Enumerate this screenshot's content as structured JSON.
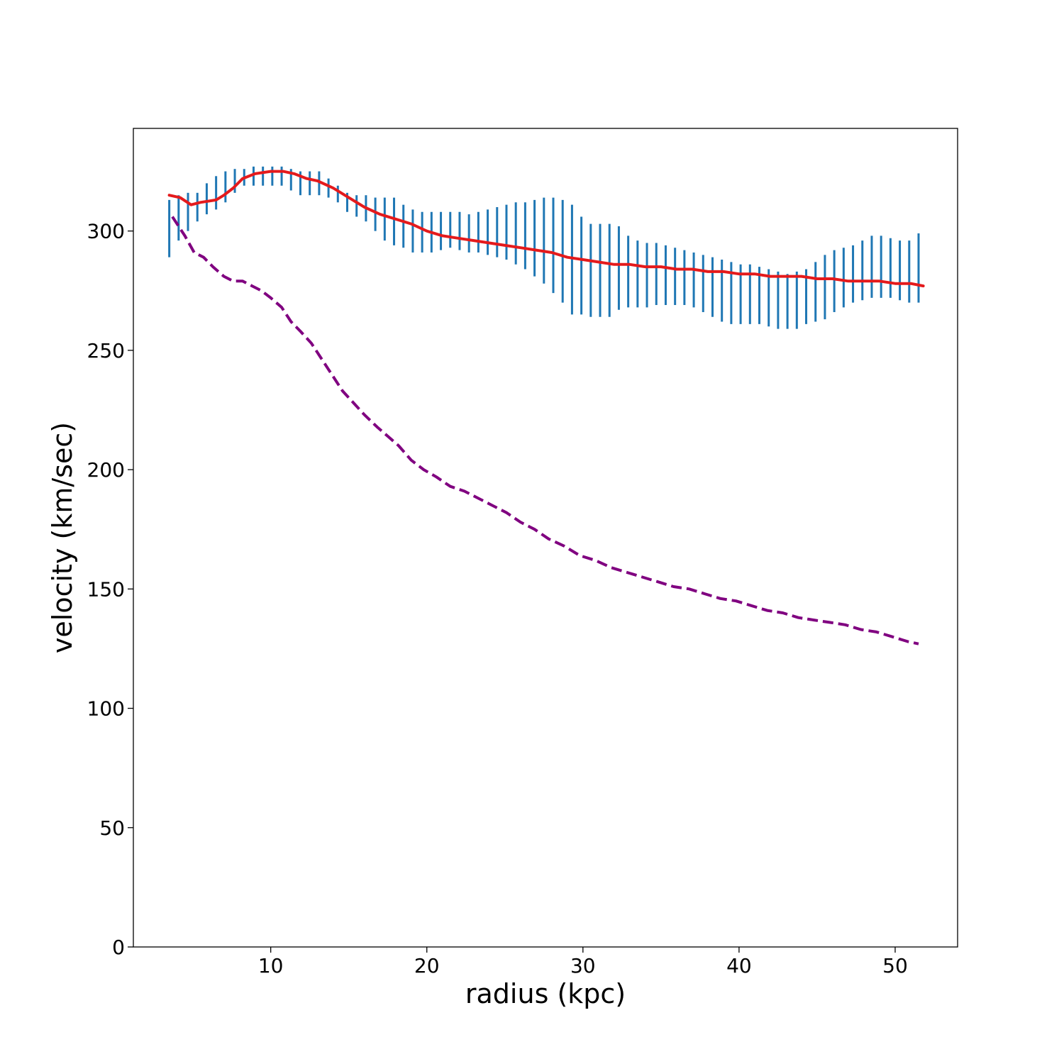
{
  "chart_data": {
    "type": "line",
    "xlabel": "radius (kpc)",
    "ylabel": "velocity (km/sec)",
    "xlim": [
      1.2,
      54.0
    ],
    "ylim": [
      0,
      343
    ],
    "xticks": [
      10,
      20,
      30,
      40,
      50
    ],
    "yticks": [
      0,
      50,
      100,
      150,
      200,
      250,
      300
    ],
    "grid": false,
    "legend": "none",
    "colors": {
      "errorbars": "#1f77b4",
      "fit": "#e41a1c",
      "dashed": "#800080"
    },
    "series": [
      {
        "style": "errorbar",
        "x": [
          3.5,
          4.1,
          4.7,
          5.3,
          5.9,
          6.5,
          7.1,
          7.7,
          8.3,
          8.9,
          9.5,
          10.1,
          10.7,
          11.3,
          11.9,
          12.5,
          13.1,
          13.7,
          14.3,
          14.9,
          15.5,
          16.1,
          16.7,
          17.3,
          17.9,
          18.5,
          19.1,
          19.7,
          20.3,
          20.9,
          21.5,
          22.1,
          22.7,
          23.3,
          23.9,
          24.5,
          25.1,
          25.7,
          26.3,
          26.9,
          27.5,
          28.1,
          28.7,
          29.3,
          29.9,
          30.5,
          31.1,
          31.7,
          32.3,
          32.9,
          33.5,
          34.1,
          34.7,
          35.3,
          35.9,
          36.5,
          37.1,
          37.7,
          38.3,
          38.9,
          39.5,
          40.1,
          40.7,
          41.3,
          41.9,
          42.5,
          43.1,
          43.7,
          44.3,
          44.9,
          45.5,
          46.1,
          46.7,
          47.3,
          47.9,
          48.5,
          49.1,
          49.7,
          50.3,
          50.9,
          51.5
        ],
        "low": [
          289,
          296,
          300,
          304,
          307,
          309,
          312,
          316,
          319,
          319,
          319,
          319,
          319,
          317,
          315,
          315,
          315,
          314,
          312,
          308,
          306,
          304,
          300,
          296,
          294,
          293,
          291,
          291,
          291,
          292,
          293,
          292,
          291,
          291,
          290,
          289,
          288,
          286,
          284,
          281,
          278,
          274,
          270,
          265,
          265,
          264,
          264,
          264,
          267,
          268,
          268,
          268,
          269,
          269,
          269,
          269,
          268,
          266,
          264,
          262,
          261,
          261,
          261,
          261,
          260,
          259,
          259,
          259,
          261,
          262,
          263,
          266,
          268,
          270,
          271,
          272,
          272,
          272,
          271,
          270,
          270
        ],
        "high": [
          313,
          315,
          316,
          316,
          320,
          323,
          325,
          326,
          326,
          327,
          327,
          327,
          327,
          326,
          325,
          325,
          325,
          322,
          319,
          316,
          315,
          315,
          314,
          314,
          314,
          311,
          309,
          308,
          308,
          308,
          308,
          308,
          307,
          308,
          309,
          310,
          311,
          312,
          312,
          313,
          314,
          314,
          313,
          311,
          306,
          303,
          303,
          303,
          302,
          298,
          296,
          295,
          295,
          294,
          293,
          292,
          291,
          290,
          289,
          288,
          287,
          286,
          286,
          285,
          284,
          283,
          282,
          283,
          284,
          287,
          290,
          292,
          293,
          294,
          296,
          298,
          298,
          297,
          296,
          296,
          299
        ]
      },
      {
        "style": "solid",
        "x": [
          3.5,
          4.2,
          4.9,
          5.5,
          6.5,
          7.0,
          7.6,
          8.2,
          9.0,
          10.0,
          10.8,
          11.5,
          12.3,
          13.0,
          14.0,
          15.0,
          16.0,
          17.0,
          18.0,
          19.0,
          20.0,
          21.0,
          22.0,
          23.0,
          24.0,
          25.0,
          26.0,
          27.0,
          28.0,
          29.0,
          30.0,
          31.0,
          32.0,
          33.0,
          34.0,
          35.0,
          36.0,
          37.0,
          38.0,
          39.0,
          40.0,
          41.0,
          42.0,
          43.0,
          44.0,
          45.0,
          46.0,
          47.0,
          48.0,
          49.0,
          50.0,
          51.0,
          51.8
        ],
        "y": [
          315,
          314,
          311,
          312,
          313,
          315,
          318,
          322,
          324,
          325,
          325,
          324,
          322,
          321,
          318,
          314,
          310,
          307,
          305,
          303,
          300,
          298,
          297,
          296,
          295,
          294,
          293,
          292,
          291,
          289,
          288,
          287,
          286,
          286,
          285,
          285,
          284,
          284,
          283,
          283,
          282,
          282,
          281,
          281,
          281,
          280,
          280,
          279,
          279,
          279,
          278,
          278,
          277
        ]
      },
      {
        "style": "dashed",
        "x": [
          3.7,
          4.5,
          5.1,
          5.7,
          6.3,
          7.0,
          7.6,
          8.2,
          8.8,
          9.4,
          10.0,
          10.7,
          11.3,
          11.9,
          12.6,
          13.2,
          13.9,
          14.6,
          15.3,
          16.0,
          16.8,
          17.5,
          18.2,
          19.0,
          19.8,
          20.6,
          21.5,
          22.4,
          23.3,
          24.2,
          25.1,
          26.0,
          26.9,
          27.8,
          28.8,
          29.8,
          30.8,
          31.8,
          32.8,
          33.8,
          34.8,
          35.8,
          36.8,
          37.8,
          38.8,
          39.8,
          40.8,
          41.8,
          42.8,
          43.8,
          44.8,
          45.8,
          46.8,
          47.8,
          48.8,
          49.8,
          50.8,
          51.5
        ],
        "y": [
          306,
          298,
          291,
          289,
          285,
          281,
          279,
          279,
          277,
          275,
          272,
          268,
          262,
          258,
          253,
          247,
          240,
          233,
          228,
          223,
          218,
          214,
          210,
          204,
          200,
          197,
          193,
          191,
          188,
          185,
          182,
          178,
          175,
          171,
          168,
          164,
          162,
          159,
          157,
          155,
          153,
          151,
          150,
          148,
          146,
          145,
          143,
          141,
          140,
          138,
          137,
          136,
          135,
          133,
          132,
          130,
          128,
          127
        ]
      }
    ]
  }
}
